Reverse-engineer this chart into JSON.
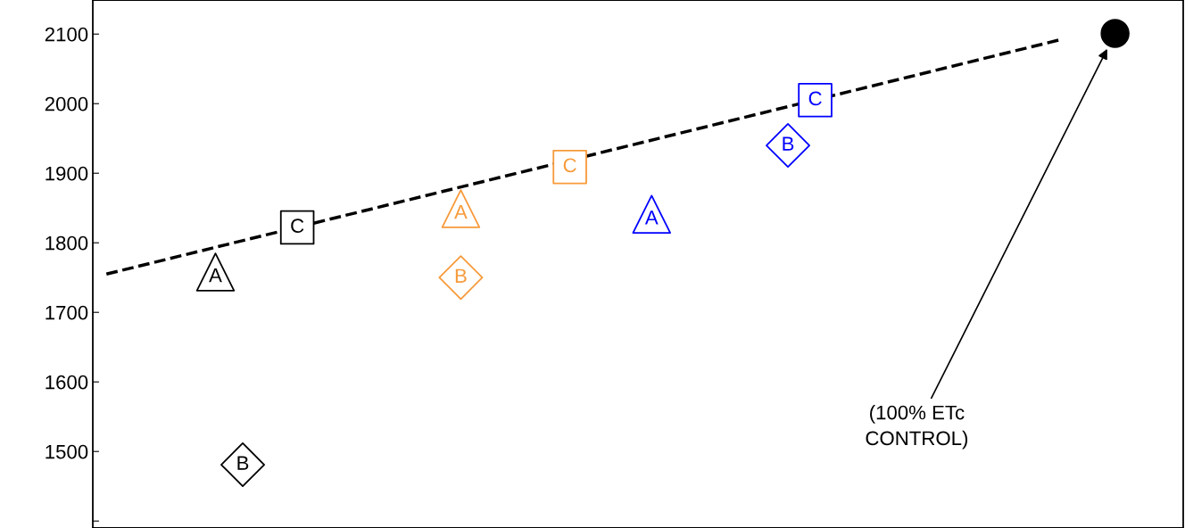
{
  "chart_data": {
    "type": "scatter",
    "categories": [
      null,
      null,
      null,
      null,
      null,
      null,
      null,
      null,
      null,
      null,
      null,
      null,
      null,
      null,
      null,
      null,
      null,
      null,
      null,
      null,
      null,
      null,
      null,
      null,
      null,
      null,
      null,
      null,
      null,
      null,
      null,
      null,
      null,
      null,
      null,
      null,
      null,
      null,
      null,
      null
    ],
    "ylim": [
      1390,
      2149
    ],
    "yticks": [
      {
        "value": 1400,
        "label": null
      },
      1500,
      1600,
      1700,
      1800,
      1900,
      2000,
      2100
    ],
    "tick_labels": "y",
    "series": [
      {
        "marker": "triangle",
        "values": [
          null,
          null,
          null,
          null,
          1758,
          null,
          null,
          null,
          null,
          null,
          null,
          null,
          null,
          1849,
          null,
          null,
          null,
          null,
          null,
          null,
          1841,
          null,
          null,
          null,
          null,
          null,
          null,
          null,
          null,
          null,
          null,
          null,
          null,
          null,
          null,
          null,
          null,
          null,
          null,
          null
        ],
        "colors": [
          null,
          null,
          null,
          null,
          "#000000",
          null,
          null,
          null,
          null,
          null,
          null,
          null,
          null,
          "#f79a3a",
          null,
          null,
          null,
          null,
          null,
          null,
          "#0000ff",
          null,
          null,
          null,
          null,
          null,
          null,
          null,
          null,
          null,
          null,
          null,
          null,
          null,
          null,
          null,
          null,
          null,
          null,
          null
        ],
        "value_labels": [
          null,
          null,
          null,
          null,
          "A",
          null,
          null,
          null,
          null,
          null,
          null,
          null,
          null,
          "A",
          null,
          null,
          null,
          null,
          null,
          null,
          "A",
          null,
          null,
          null,
          null,
          null,
          null,
          null,
          null,
          null,
          null,
          null,
          null,
          null,
          null,
          null,
          null,
          null,
          null,
          null
        ]
      },
      {
        "marker": "diamond",
        "values": [
          null,
          null,
          null,
          null,
          null,
          1481,
          null,
          null,
          null,
          null,
          null,
          null,
          null,
          1750,
          null,
          null,
          null,
          null,
          null,
          null,
          null,
          null,
          null,
          null,
          null,
          1940,
          null,
          null,
          null,
          null,
          null,
          null,
          null,
          null,
          null,
          null,
          null,
          null,
          null,
          null
        ],
        "colors": [
          null,
          null,
          null,
          null,
          null,
          "#000000",
          null,
          null,
          null,
          null,
          null,
          null,
          null,
          "#f79a3a",
          null,
          null,
          null,
          null,
          null,
          null,
          null,
          null,
          null,
          null,
          null,
          "#0000ff",
          null,
          null,
          null,
          null,
          null,
          null,
          null,
          null,
          null,
          null,
          null,
          null,
          null,
          null
        ],
        "value_labels": [
          null,
          null,
          null,
          null,
          null,
          "B",
          null,
          null,
          null,
          null,
          null,
          null,
          null,
          "B",
          null,
          null,
          null,
          null,
          null,
          null,
          null,
          null,
          null,
          null,
          null,
          "B",
          null,
          null,
          null,
          null,
          null,
          null,
          null,
          null,
          null,
          null,
          null,
          null,
          null,
          null
        ]
      },
      {
        "marker": "square",
        "values": [
          null,
          null,
          null,
          null,
          null,
          null,
          null,
          1822,
          null,
          null,
          null,
          null,
          null,
          null,
          null,
          null,
          null,
          1909,
          null,
          null,
          null,
          null,
          null,
          null,
          null,
          null,
          2005,
          null,
          null,
          null,
          null,
          null,
          null,
          null,
          null,
          null,
          null,
          null,
          null,
          null
        ],
        "colors": [
          null,
          null,
          null,
          null,
          null,
          null,
          null,
          "#000000",
          null,
          null,
          null,
          null,
          null,
          null,
          null,
          null,
          null,
          "#f79a3a",
          null,
          null,
          null,
          null,
          null,
          null,
          null,
          null,
          "#0000ff",
          null,
          null,
          null,
          null,
          null,
          null,
          null,
          null,
          null,
          null,
          null,
          null,
          null
        ],
        "value_labels": [
          null,
          null,
          null,
          null,
          null,
          null,
          null,
          "C",
          null,
          null,
          null,
          null,
          null,
          null,
          null,
          null,
          null,
          "C",
          null,
          null,
          null,
          null,
          null,
          null,
          null,
          null,
          "C",
          null,
          null,
          null,
          null,
          null,
          null,
          null,
          null,
          null,
          null,
          null,
          null,
          null
        ]
      },
      {
        "marker": "circle",
        "color": "#000000",
        "values": [
          null,
          null,
          null,
          null,
          null,
          null,
          null,
          null,
          null,
          null,
          null,
          null,
          null,
          null,
          null,
          null,
          null,
          null,
          null,
          null,
          null,
          null,
          null,
          null,
          null,
          null,
          null,
          null,
          null,
          null,
          null,
          null,
          null,
          null,
          null,
          null,
          null,
          2101,
          null,
          null
        ]
      },
      {
        "type": "line",
        "line_style": "dashed",
        "color": "#000000",
        "values": [
          1755,
          null,
          null,
          null,
          null,
          null,
          null,
          null,
          null,
          null,
          null,
          null,
          null,
          null,
          null,
          null,
          null,
          null,
          null,
          null,
          null,
          null,
          null,
          null,
          null,
          null,
          null,
          null,
          null,
          null,
          null,
          null,
          null,
          null,
          null,
          2092,
          null,
          null,
          null,
          null
        ]
      }
    ],
    "annotations": [
      "(100% ETc\nCONTROL)"
    ]
  }
}
